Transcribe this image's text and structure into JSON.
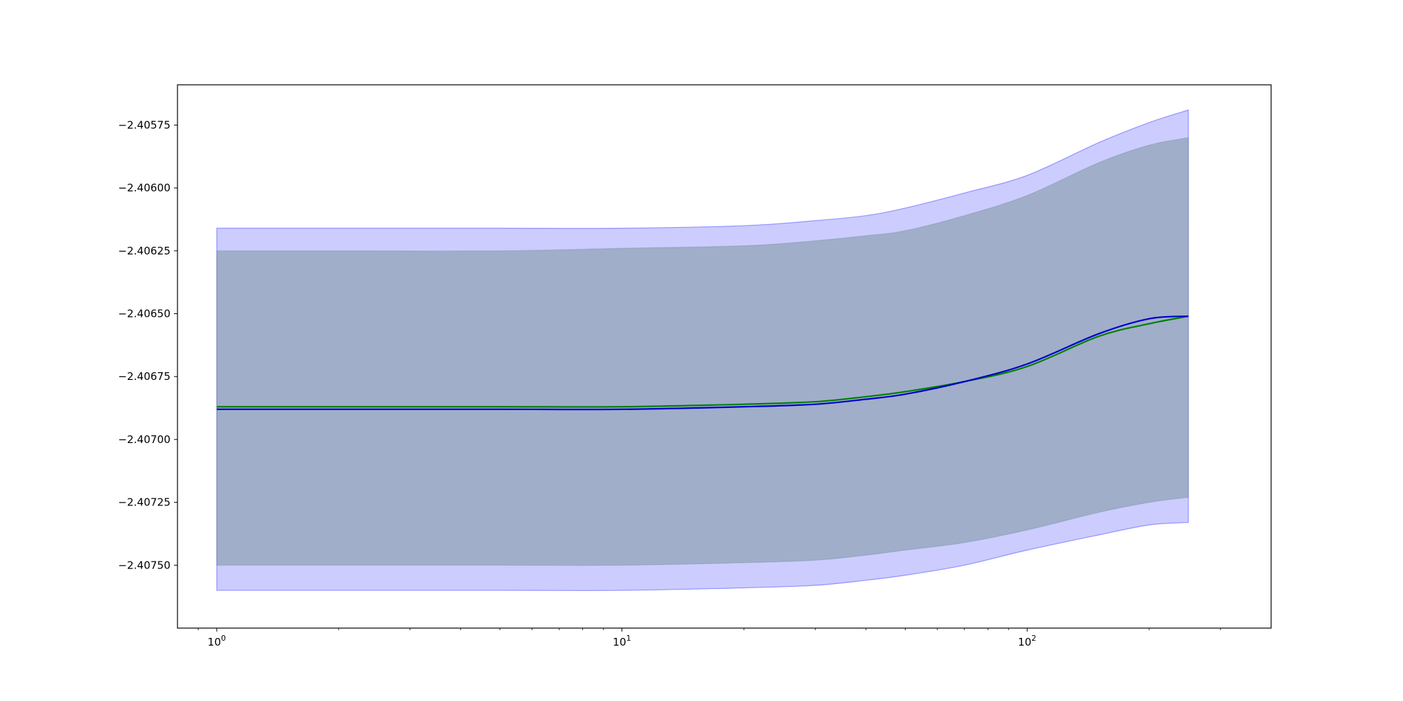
{
  "chart_data": {
    "type": "area",
    "title": "",
    "xlabel": "",
    "ylabel": "",
    "xscale": "log",
    "xlim": [
      0.8,
      400
    ],
    "ylim": [
      -2.40775,
      -2.40559
    ],
    "grid": false,
    "legend": "none",
    "x_major_ticks": [
      1,
      10,
      100
    ],
    "x_major_tick_labels": [
      "10^0",
      "10^1",
      "10^2"
    ],
    "x_minor_ticks": [
      0.9,
      2,
      3,
      4,
      5,
      6,
      7,
      8,
      9,
      20,
      30,
      40,
      50,
      60,
      70,
      80,
      90,
      200,
      300
    ],
    "y_ticks": [
      -2.40575,
      -2.406,
      -2.40625,
      -2.4065,
      -2.40675,
      -2.407,
      -2.40725,
      -2.4075
    ],
    "y_tick_labels": [
      "−2.40575",
      "−2.40600",
      "−2.40625",
      "−2.40650",
      "−2.40675",
      "−2.40700",
      "−2.40725",
      "−2.40750"
    ],
    "x": [
      1,
      2,
      5,
      10,
      20,
      30,
      40,
      50,
      70,
      100,
      150,
      200,
      250
    ],
    "series": [
      {
        "kind": "band",
        "color": "#0000ff",
        "alpha": 0.2,
        "lower": [
          -2.4076,
          -2.4076,
          -2.4076,
          -2.4076,
          -2.40759,
          -2.40758,
          -2.40756,
          -2.40754,
          -2.4075,
          -2.40744,
          -2.40738,
          -2.40734,
          -2.40733
        ],
        "upper": [
          -2.40616,
          -2.40616,
          -2.40616,
          -2.40616,
          -2.40615,
          -2.40613,
          -2.40611,
          -2.40608,
          -2.40602,
          -2.40595,
          -2.40582,
          -2.40574,
          -2.40569
        ]
      },
      {
        "kind": "band",
        "color": "#6a8a8a",
        "alpha": 0.45,
        "lower": [
          -2.4075,
          -2.4075,
          -2.4075,
          -2.4075,
          -2.40749,
          -2.40748,
          -2.40746,
          -2.40744,
          -2.40741,
          -2.40736,
          -2.40729,
          -2.40725,
          -2.40723
        ],
        "upper": [
          -2.40625,
          -2.40625,
          -2.40625,
          -2.40624,
          -2.40623,
          -2.40621,
          -2.40619,
          -2.40617,
          -2.40611,
          -2.40603,
          -2.4059,
          -2.40583,
          -2.4058
        ]
      },
      {
        "kind": "line",
        "color": "#008000",
        "values": [
          -2.40687,
          -2.40687,
          -2.40687,
          -2.40687,
          -2.40686,
          -2.40685,
          -2.40683,
          -2.40681,
          -2.40677,
          -2.40671,
          -2.40659,
          -2.40654,
          -2.40651
        ]
      },
      {
        "kind": "line",
        "color": "#0000cc",
        "values": [
          -2.40688,
          -2.40688,
          -2.40688,
          -2.40688,
          -2.40687,
          -2.40686,
          -2.40684,
          -2.40682,
          -2.40677,
          -2.4067,
          -2.40658,
          -2.40652,
          -2.40651
        ]
      }
    ]
  }
}
